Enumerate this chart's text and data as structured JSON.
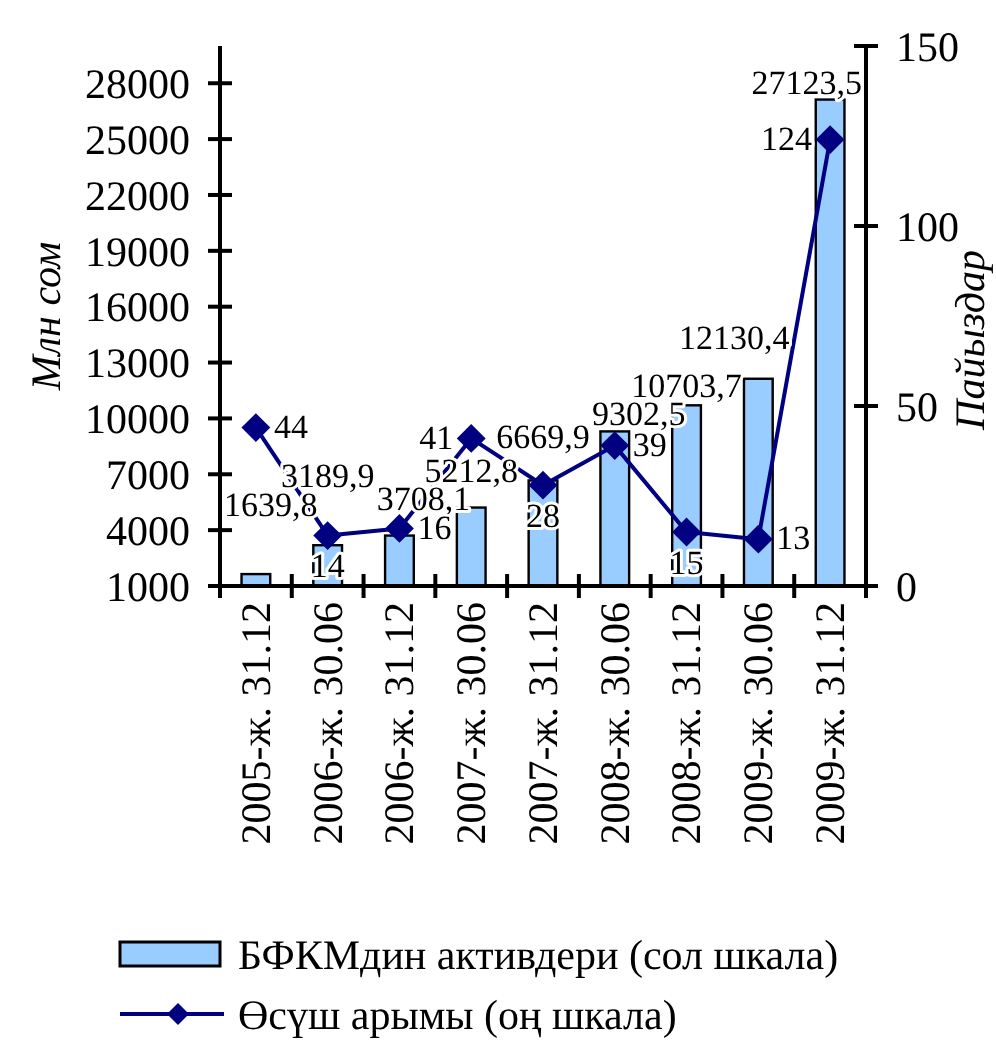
{
  "chart_data": {
    "type": "bar",
    "categories": [
      "2005-ж. 31.12",
      "2006-ж. 30.06",
      "2006-ж. 31.12",
      "2007-ж. 30.06",
      "2007-ж. 31.12",
      "2008-ж. 30.06",
      "2008-ж. 31.12",
      "2009-ж. 30.06",
      "2009-ж. 31.12"
    ],
    "series": [
      {
        "name": "БФКМдин активдери (сол шкала)",
        "color": "#99ccff",
        "values": [
          1639.8,
          3189.9,
          3708.1,
          5212.8,
          6669.9,
          9302.5,
          10703.7,
          12130.4,
          27123.5
        ],
        "value_labels": [
          "1639,8",
          "3189,9",
          "3708,1",
          "5212,8",
          "6669,9",
          "9302,5",
          "10703,7",
          "12130,4",
          "27123,5"
        ]
      },
      {
        "name": "Өсүш арымы (оң шкала)",
        "type": "line",
        "axis": "y2",
        "color": "#000080",
        "values": [
          44,
          14,
          16,
          41,
          28,
          39,
          15,
          13,
          124
        ],
        "value_labels": [
          "44",
          "14",
          "16",
          "41",
          "28",
          "39",
          "15",
          "13",
          "124"
        ]
      }
    ],
    "ylabel": "Млн сом",
    "y2label": "Пайыздар",
    "ylim": [
      1000,
      30000
    ],
    "yticks": [
      1000,
      4000,
      7000,
      10000,
      13000,
      16000,
      19000,
      22000,
      25000,
      28000
    ],
    "y2lim": [
      0,
      150
    ],
    "y2ticks": [
      0,
      50,
      100,
      150
    ],
    "marker": "diamond",
    "legend": "bottom"
  }
}
